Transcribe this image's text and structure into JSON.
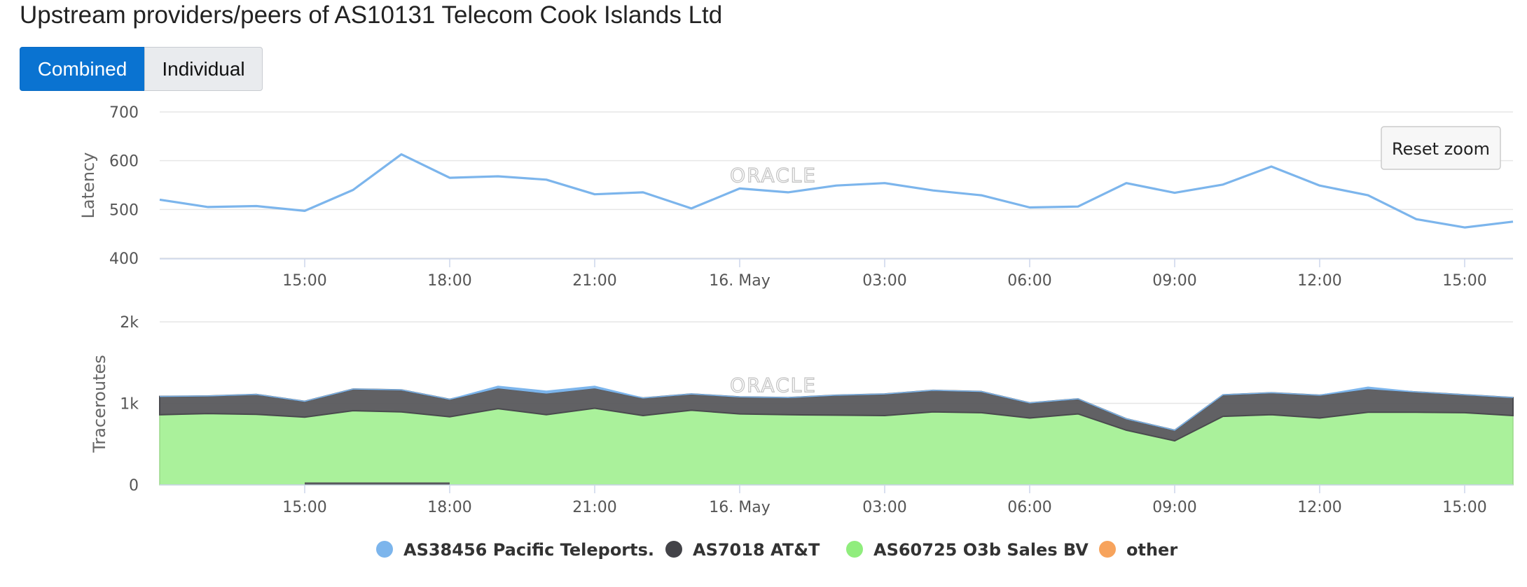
{
  "title": "Upstream providers/peers of AS10131 Telecom Cook Islands Ltd",
  "view_toggle": {
    "combined_label": "Combined",
    "individual_label": "Individual",
    "selected": "Combined"
  },
  "reset_zoom_label": "Reset zoom",
  "watermark": "ORACLE",
  "colors": {
    "latency_line": "#7cb5ec",
    "att": "#58585c",
    "o3b": "#aaf19b",
    "other": "#f7a35c",
    "pacific": "#7cb5ec",
    "grid": "#e6e6e6",
    "button_active": "#0a73d1"
  },
  "chart_data": [
    {
      "type": "line",
      "ylabel": "Latency",
      "ylim": [
        400,
        700
      ],
      "y_ticks": [
        "400",
        "500",
        "600",
        "700"
      ],
      "x_ticks": [
        "15:00",
        "18:00",
        "21:00",
        "16. May",
        "03:00",
        "06:00",
        "09:00",
        "12:00",
        "15:00"
      ],
      "x_range_hours": [
        -3,
        25
      ],
      "series": [
        {
          "name": "AS38456 Pacific Teleports.",
          "x": [
            -3,
            -2,
            -1,
            0,
            1,
            2,
            3,
            4,
            5,
            6,
            7,
            8,
            9,
            10,
            11,
            12,
            13,
            14,
            15,
            16,
            17,
            18,
            19,
            20,
            21,
            22,
            23,
            24,
            25
          ],
          "values": [
            520,
            505,
            507,
            497,
            540,
            613,
            565,
            568,
            561,
            531,
            535,
            502,
            543,
            535,
            549,
            554,
            539,
            529,
            504,
            506,
            554,
            534,
            551,
            588,
            549,
            529,
            480,
            463,
            475
          ]
        }
      ]
    },
    {
      "type": "area",
      "stacked": true,
      "ylabel": "Traceroutes",
      "ylim": [
        0,
        2000
      ],
      "y_ticks": [
        "0",
        "1k",
        "2k"
      ],
      "x_ticks": [
        "15:00",
        "18:00",
        "21:00",
        "16. May",
        "03:00",
        "06:00",
        "09:00",
        "12:00",
        "15:00"
      ],
      "x_range_hours": [
        -3,
        25
      ],
      "x": [
        -3,
        -2,
        -1,
        0,
        1,
        2,
        3,
        4,
        5,
        6,
        7,
        8,
        9,
        10,
        11,
        12,
        13,
        14,
        15,
        16,
        17,
        18,
        19,
        20,
        21,
        22,
        23,
        24,
        25
      ],
      "series": [
        {
          "name": "AS60725 O3b Sales BV",
          "values": [
            860,
            875,
            865,
            830,
            910,
            895,
            835,
            935,
            860,
            940,
            850,
            915,
            870,
            860,
            855,
            850,
            895,
            885,
            820,
            870,
            670,
            540,
            840,
            860,
            820,
            890,
            890,
            885,
            850
          ]
        },
        {
          "name": "AS7018 AT&T",
          "values": [
            225,
            215,
            245,
            195,
            265,
            270,
            215,
            255,
            265,
            250,
            215,
            200,
            210,
            210,
            245,
            265,
            265,
            260,
            185,
            185,
            140,
            130,
            265,
            270,
            280,
            290,
            250,
            220,
            220
          ]
        },
        {
          "name": "AS38456 Pacific Teleports.",
          "values": [
            0,
            0,
            0,
            0,
            0,
            0,
            0,
            20,
            25,
            20,
            0,
            0,
            0,
            0,
            0,
            0,
            0,
            0,
            0,
            0,
            0,
            0,
            0,
            0,
            0,
            20,
            0,
            0,
            0
          ]
        },
        {
          "name": "other",
          "values": [
            0,
            0,
            0,
            0,
            0,
            0,
            0,
            0,
            0,
            0,
            0,
            0,
            0,
            0,
            0,
            0,
            0,
            0,
            0,
            0,
            0,
            0,
            0,
            0,
            0,
            0,
            0,
            0,
            0
          ]
        }
      ],
      "legend": {
        "placement": "bottom-center",
        "items": [
          {
            "label": "AS38456 Pacific Teleports.",
            "color": "#7cb5ec"
          },
          {
            "label": "AS7018 AT&T",
            "color": "#434348"
          },
          {
            "label": "AS60725 O3b Sales BV",
            "color": "#90ed7d"
          },
          {
            "label": "other",
            "color": "#f7a35c"
          }
        ]
      }
    }
  ]
}
